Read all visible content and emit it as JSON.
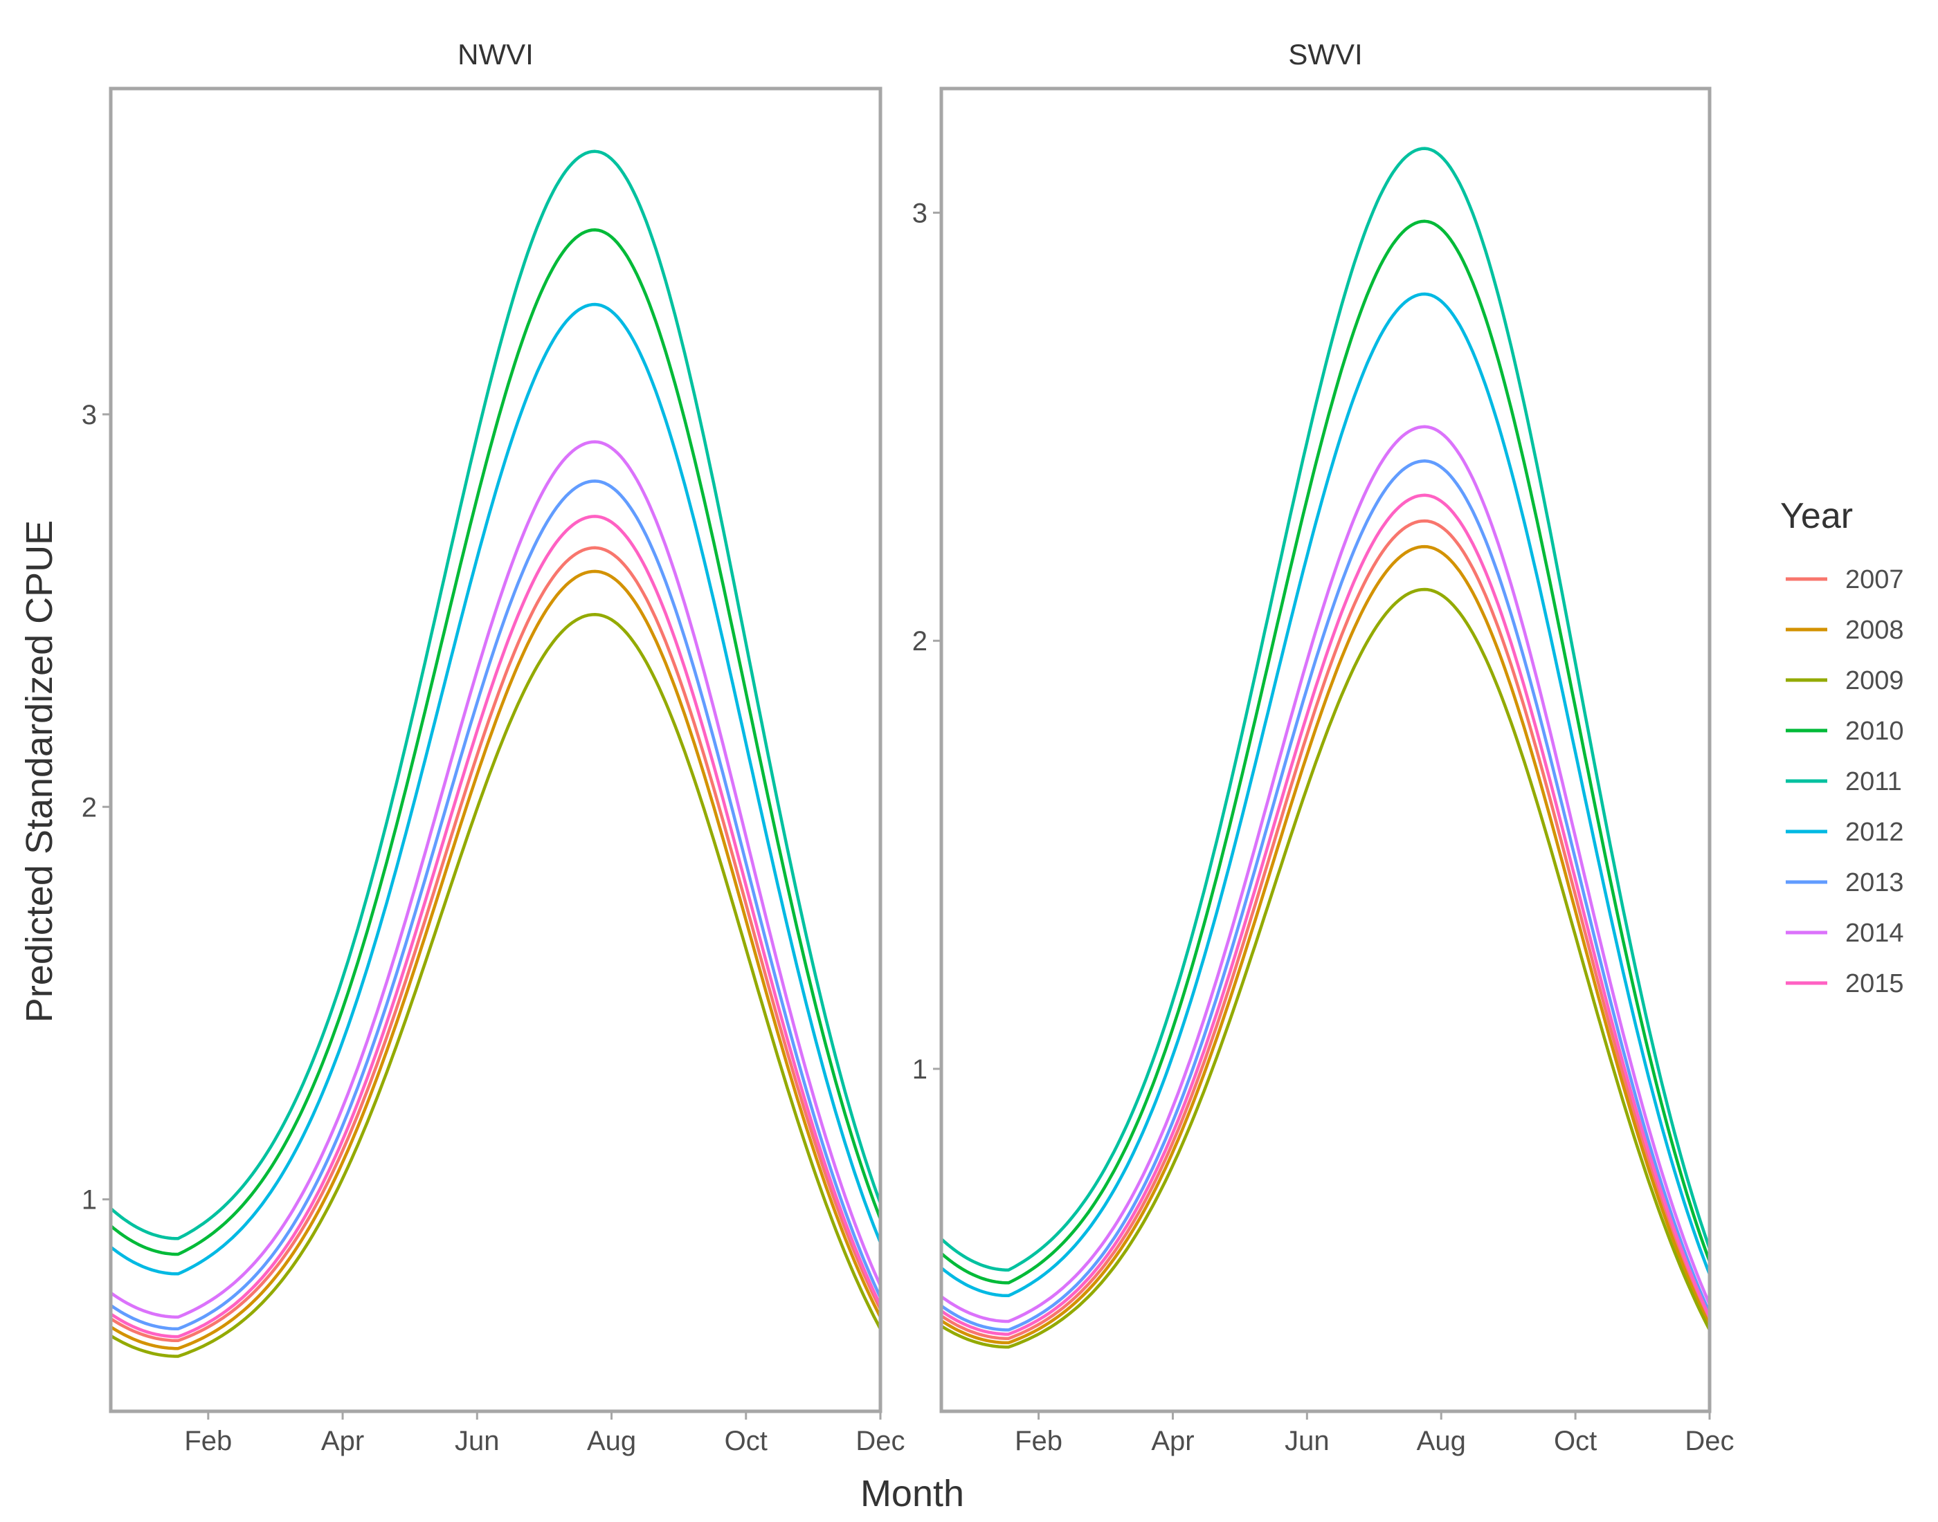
{
  "chart_data": {
    "type": "line",
    "xlabel": "Month",
    "ylabel": "Predicted Standardized CPUE",
    "legend_title": "Year",
    "legend_position": "right",
    "grid": false,
    "x_range": [
      0.55,
      12.0
    ],
    "x_ticks": [
      {
        "value": 2,
        "label": "Feb"
      },
      {
        "value": 4,
        "label": "Apr"
      },
      {
        "value": 6,
        "label": "Jun"
      },
      {
        "value": 8,
        "label": "Aug"
      },
      {
        "value": 10,
        "label": "Oct"
      },
      {
        "value": 12,
        "label": "Dec"
      }
    ],
    "curve_model": {
      "form": "min + (max - min) * exp(-(month - 7.75)^2 / 10.4)",
      "peak_month": 7.75,
      "trough_month": 1.55
    },
    "series": [
      {
        "name": "2007",
        "color": "#F8766D"
      },
      {
        "name": "2008",
        "color": "#D39200"
      },
      {
        "name": "2009",
        "color": "#93AA00"
      },
      {
        "name": "2010",
        "color": "#00BA38"
      },
      {
        "name": "2011",
        "color": "#00C19F"
      },
      {
        "name": "2012",
        "color": "#00B9E3"
      },
      {
        "name": "2013",
        "color": "#619CFF"
      },
      {
        "name": "2014",
        "color": "#DB72FB"
      },
      {
        "name": "2015",
        "color": "#FF61C3"
      }
    ],
    "panels": [
      {
        "title": "NWVI",
        "ylim": [
          0.46,
          3.83
        ],
        "y_ticks": [
          1,
          2,
          3
        ],
        "y_tick_labels": [
          "1",
          "2",
          "3"
        ],
        "trough_values": [
          0.64,
          0.62,
          0.6,
          0.86,
          0.9,
          0.81,
          0.67,
          0.7,
          0.65
        ],
        "peak_values": [
          2.66,
          2.6,
          2.49,
          3.47,
          3.67,
          3.28,
          2.83,
          2.93,
          2.74
        ],
        "dec_values": [
          0.72,
          0.7,
          0.67,
          0.95,
          0.99,
          0.89,
          0.75,
          0.78,
          0.73
        ]
      },
      {
        "title": "SWVI",
        "ylim": [
          0.2,
          3.29
        ],
        "y_ticks": [
          1,
          2,
          3
        ],
        "y_tick_labels": [
          "1",
          "2",
          "3"
        ],
        "trough_values": [
          0.37,
          0.36,
          0.35,
          0.5,
          0.53,
          0.47,
          0.39,
          0.41,
          0.38
        ],
        "peak_values": [
          2.28,
          2.22,
          2.12,
          2.98,
          3.15,
          2.81,
          2.42,
          2.5,
          2.34
        ],
        "dec_values": [
          0.41,
          0.4,
          0.39,
          0.55,
          0.58,
          0.52,
          0.43,
          0.45,
          0.42
        ]
      }
    ]
  }
}
